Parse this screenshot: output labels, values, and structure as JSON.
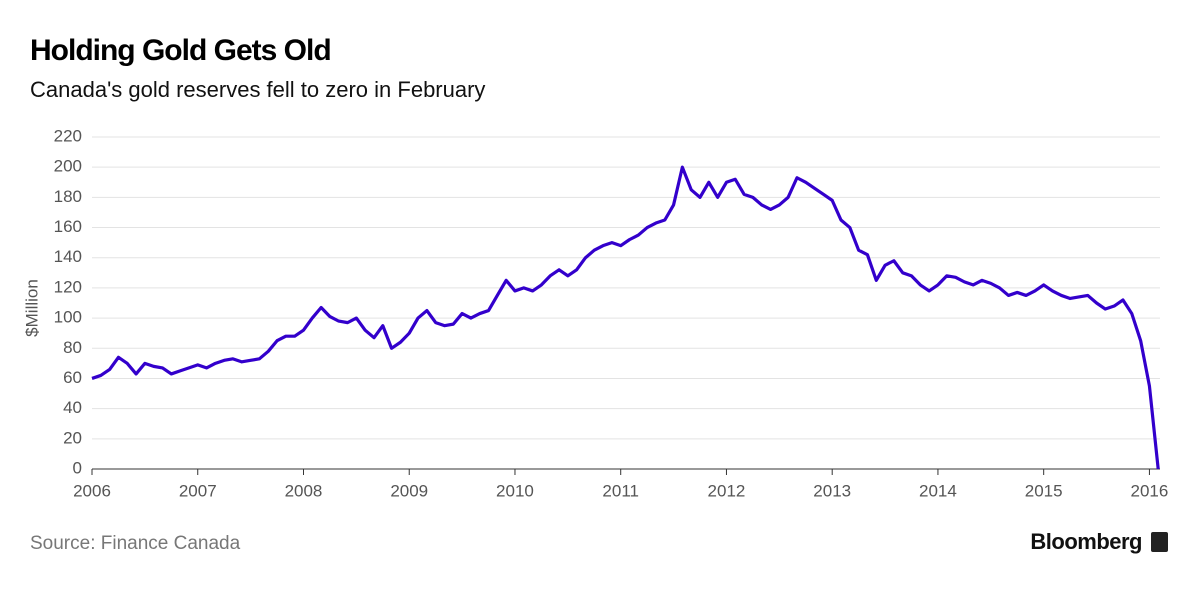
{
  "chart_data": {
    "type": "line",
    "title": "Holding Gold Gets Old",
    "subtitle": "Canada's gold reserves fell to zero in February",
    "y_label": "$Million",
    "source": "Source: Finance Canada",
    "color": "#3300cc",
    "grid": true,
    "xlim": [
      2006,
      2016.1
    ],
    "xticks": [
      2006,
      2007,
      2008,
      2009,
      2010,
      2011,
      2012,
      2013,
      2014,
      2015,
      2016
    ],
    "ylim": [
      0,
      220
    ],
    "yticks": [
      0,
      20,
      40,
      60,
      80,
      100,
      120,
      140,
      160,
      180,
      200,
      220
    ],
    "x": [
      2006.0,
      2006.083,
      2006.167,
      2006.25,
      2006.333,
      2006.417,
      2006.5,
      2006.583,
      2006.667,
      2006.75,
      2006.833,
      2006.917,
      2007.0,
      2007.083,
      2007.167,
      2007.25,
      2007.333,
      2007.417,
      2007.5,
      2007.583,
      2007.667,
      2007.75,
      2007.833,
      2007.917,
      2008.0,
      2008.083,
      2008.167,
      2008.25,
      2008.333,
      2008.417,
      2008.5,
      2008.583,
      2008.667,
      2008.75,
      2008.833,
      2008.917,
      2009.0,
      2009.083,
      2009.167,
      2009.25,
      2009.333,
      2009.417,
      2009.5,
      2009.583,
      2009.667,
      2009.75,
      2009.833,
      2009.917,
      2010.0,
      2010.083,
      2010.167,
      2010.25,
      2010.333,
      2010.417,
      2010.5,
      2010.583,
      2010.667,
      2010.75,
      2010.833,
      2010.917,
      2011.0,
      2011.083,
      2011.167,
      2011.25,
      2011.333,
      2011.417,
      2011.5,
      2011.583,
      2011.667,
      2011.75,
      2011.833,
      2011.917,
      2012.0,
      2012.083,
      2012.167,
      2012.25,
      2012.333,
      2012.417,
      2012.5,
      2012.583,
      2012.667,
      2012.75,
      2012.833,
      2012.917,
      2013.0,
      2013.083,
      2013.167,
      2013.25,
      2013.333,
      2013.417,
      2013.5,
      2013.583,
      2013.667,
      2013.75,
      2013.833,
      2013.917,
      2014.0,
      2014.083,
      2014.167,
      2014.25,
      2014.333,
      2014.417,
      2014.5,
      2014.583,
      2014.667,
      2014.75,
      2014.833,
      2014.917,
      2015.0,
      2015.083,
      2015.167,
      2015.25,
      2015.333,
      2015.417,
      2015.5,
      2015.583,
      2015.667,
      2015.75,
      2015.833,
      2015.917,
      2016.0,
      2016.083
    ],
    "values": [
      60,
      62,
      66,
      74,
      70,
      63,
      70,
      68,
      67,
      63,
      65,
      67,
      69,
      67,
      70,
      72,
      73,
      71,
      72,
      73,
      78,
      85,
      88,
      88,
      92,
      100,
      107,
      101,
      98,
      97,
      100,
      92,
      87,
      95,
      80,
      84,
      90,
      100,
      105,
      97,
      95,
      96,
      103,
      100,
      103,
      105,
      115,
      125,
      118,
      120,
      118,
      122,
      128,
      132,
      128,
      132,
      140,
      145,
      148,
      150,
      148,
      152,
      155,
      160,
      163,
      165,
      175,
      200,
      185,
      180,
      190,
      180,
      190,
      192,
      182,
      180,
      175,
      172,
      175,
      180,
      193,
      190,
      186,
      182,
      178,
      165,
      160,
      145,
      142,
      125,
      135,
      138,
      130,
      128,
      122,
      118,
      122,
      128,
      127,
      124,
      122,
      125,
      123,
      120,
      115,
      117,
      115,
      118,
      122,
      118,
      115,
      113,
      114,
      115,
      110,
      106,
      108,
      112,
      103,
      85,
      55,
      0
    ]
  },
  "brand": "Bloomberg"
}
